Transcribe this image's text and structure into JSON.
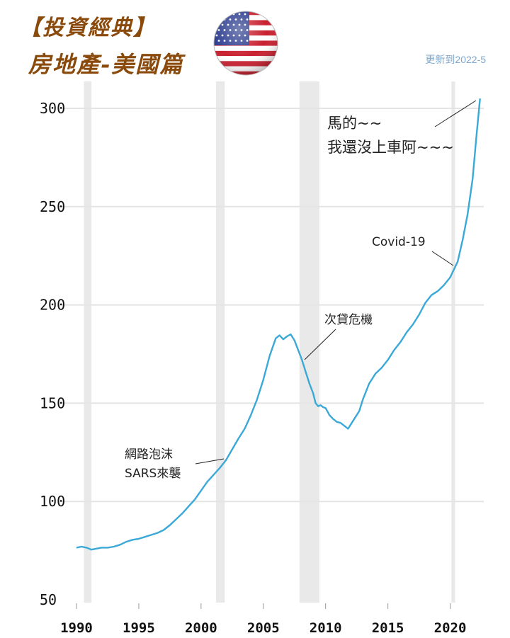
{
  "header": {
    "title_line1": "【投資經典】",
    "title_line2": "房地產-美國篇",
    "updated": "更新到2022-5"
  },
  "colors": {
    "title": "#8a4a0c",
    "line": "#3aa9d8",
    "recession": "#e9e9e9",
    "grid": "#e4e4e4"
  },
  "icons": {
    "flag": "us-flag-icon"
  },
  "chart_data": {
    "type": "line",
    "title": "",
    "xlabel": "",
    "ylabel": "",
    "xlim": [
      1990,
      2022.7
    ],
    "ylim": [
      50,
      310
    ],
    "y_ticks": [
      50,
      100,
      150,
      200,
      250,
      300
    ],
    "x_ticks": [
      1990,
      1995,
      2000,
      2005,
      2010,
      2015,
      2020
    ],
    "recessions": [
      [
        1990.6,
        1991.2
      ],
      [
        2001.2,
        2001.9
      ],
      [
        2007.9,
        2009.5
      ],
      [
        2020.1,
        2020.4
      ]
    ],
    "series": [
      {
        "x": [
          1990.0,
          1990.4,
          1990.8,
          1991.2,
          1991.6,
          1992.0,
          1992.5,
          1993.0,
          1993.5,
          1994.0,
          1994.5,
          1995.0,
          1995.5,
          1996.0,
          1996.5,
          1997.0,
          1997.5,
          1998.0,
          1998.5,
          1999.0,
          1999.5,
          2000.0,
          2000.5,
          2001.0,
          2001.5,
          2002.0,
          2002.5,
          2003.0,
          2003.5,
          2004.0,
          2004.5,
          2005.0,
          2005.5,
          2006.0,
          2006.3,
          2006.6,
          2006.9,
          2007.2,
          2007.5,
          2007.8,
          2008.1,
          2008.4,
          2008.7,
          2009.0,
          2009.2,
          2009.4,
          2009.6,
          2009.8,
          2010.0,
          2010.3,
          2010.6,
          2010.9,
          2011.2,
          2011.5,
          2011.8,
          2012.1,
          2012.4,
          2012.7,
          2013.0,
          2013.5,
          2014.0,
          2014.5,
          2015.0,
          2015.5,
          2016.0,
          2016.5,
          2017.0,
          2017.5,
          2018.0,
          2018.5,
          2019.0,
          2019.5,
          2020.0,
          2020.3,
          2020.6,
          2021.0,
          2021.4,
          2021.8,
          2022.1,
          2022.4
        ],
        "values": [
          76.5,
          77,
          76.5,
          75.5,
          76,
          76.5,
          76.5,
          77,
          78,
          79.5,
          80.5,
          81,
          82,
          83,
          84,
          85.5,
          88,
          91,
          94,
          97.5,
          101,
          105.5,
          110,
          113.5,
          117,
          121,
          126.5,
          132,
          137,
          144,
          152,
          162,
          174,
          183,
          184.5,
          182.5,
          184,
          185,
          182,
          177,
          172,
          166,
          160,
          155,
          150,
          148.5,
          149,
          148,
          147.5,
          144,
          142,
          140.5,
          140,
          138.5,
          137,
          140,
          143,
          146,
          152,
          160,
          165,
          168,
          172,
          177,
          181,
          186,
          190,
          195,
          201,
          205,
          207,
          210,
          214,
          218,
          222,
          233,
          246,
          264,
          285,
          305
        ]
      }
    ],
    "annotations": [
      {
        "text": "網路泡沫",
        "x": 2000.0
      },
      {
        "text": "SARS來襲",
        "x": 2000.0
      },
      {
        "text": "次貸危機",
        "x": 2008.0
      },
      {
        "text": "Covid-19",
        "x": 2020.3
      },
      {
        "text": "馬的~~",
        "x": 2022.3
      },
      {
        "text": "我還沒上車阿~~~",
        "x": 2022.3
      }
    ]
  }
}
